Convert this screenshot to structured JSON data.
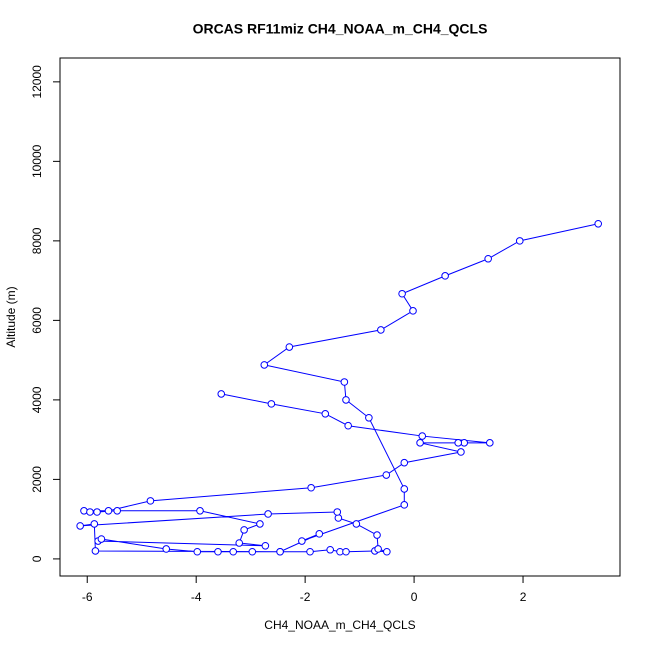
{
  "chart_data": {
    "type": "scatter",
    "title": "ORCAS RF11miz CH4_NOAA_m_CH4_QCLS",
    "x_label": "CH4_NOAA_m_CH4_QCLS",
    "y_label": "Altitude (m)",
    "color": "#0000ff",
    "lines": true,
    "xlim": [
      -6.5,
      3.78
    ],
    "ylim": [
      -430,
      12600
    ],
    "xticks": [
      -6,
      -4,
      -2,
      0,
      2
    ],
    "yticks": [
      0,
      2000,
      4000,
      6000,
      8000,
      10000,
      12000
    ],
    "x": [
      -3.54,
      -2.62,
      -1.63,
      -1.21,
      0.15,
      1.39,
      0.92,
      0.81,
      0.11,
      0.86,
      -0.18,
      -0.51,
      -1.89,
      -4.84,
      -5.61,
      -6.06,
      -5.95,
      -5.82,
      -5.45,
      -3.93,
      -2.83,
      -3.12,
      -3.21,
      -2.73,
      -5.8,
      -5.74,
      -4.55,
      -3.98,
      -3.6,
      -3.32,
      -2.97,
      -2.46,
      -1.91,
      -1.54,
      -1.36,
      -1.25,
      -0.72,
      -0.5,
      -0.66,
      -0.68,
      -1.06,
      -1.39,
      -1.41,
      -2.68,
      -6.13,
      -5.87,
      -5.85,
      -2.46,
      -1.74,
      -2.06,
      -0.18,
      -0.18,
      -0.83,
      -1.25,
      -1.28,
      -2.75,
      -2.29,
      -0.61,
      -0.02,
      -0.22,
      0.57,
      1.36,
      1.94,
      3.38
    ],
    "values": [
      4150,
      3900,
      3650,
      3350,
      3090,
      2920,
      2920,
      2920,
      2920,
      2690,
      2420,
      2110,
      1790,
      1460,
      1210,
      1210,
      1180,
      1180,
      1210,
      1210,
      880,
      730,
      400,
      330,
      450,
      500,
      250,
      180,
      180,
      180,
      180,
      180,
      180,
      230,
      180,
      180,
      200,
      180,
      250,
      600,
      880,
      1030,
      1180,
      1130,
      830,
      880,
      200,
      180,
      630,
      450,
      1360,
      1760,
      3550,
      4000,
      4450,
      4880,
      5330,
      5760,
      6240,
      6670,
      7120,
      7550,
      8000,
      8430
    ]
  }
}
